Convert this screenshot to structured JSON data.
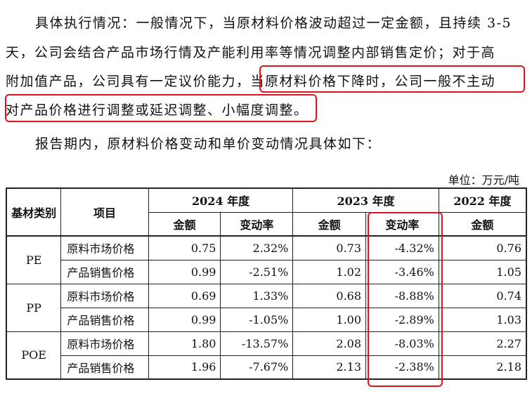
{
  "paragraph": {
    "line1": "具体执行情况：一般情况下，当原材料价格波动超过一定金额，且持续 3-5",
    "line2": "天，公司会结合产品市场行情及产能利用率等情况调整内部销售定价；对于高",
    "line3_a": "附加值产品，公司具有一定议价能力，",
    "line3_b": "当原材料价格下降时，公司一般不主动",
    "line4": "对产品价格进行调整或延迟调整、小幅度调整。",
    "line5": "报告期内，原材料价格变动和单价变动情况具体如下："
  },
  "unit_label": "单位：万元/吨",
  "table": {
    "headers": {
      "category": "基材类别",
      "item": "项目",
      "y2024": "2024 年度",
      "y2023": "2023 年度",
      "y2022": "2022 年度",
      "amount": "金额",
      "change": "变动率"
    },
    "groups": [
      {
        "name": "PE",
        "rows": [
          {
            "item": "原料市场价格",
            "a2024": "0.75",
            "c2024": "2.32%",
            "a2023": "0.73",
            "c2023": "-4.32%",
            "a2022": "0.76"
          },
          {
            "item": "产品销售价格",
            "a2024": "0.99",
            "c2024": "-2.51%",
            "a2023": "1.02",
            "c2023": "-3.46%",
            "a2022": "1.05"
          }
        ]
      },
      {
        "name": "PP",
        "rows": [
          {
            "item": "原料市场价格",
            "a2024": "0.69",
            "c2024": "1.33%",
            "a2023": "0.68",
            "c2023": "-8.88%",
            "a2022": "0.74"
          },
          {
            "item": "产品销售价格",
            "a2024": "0.99",
            "c2024": "-1.05%",
            "a2023": "1.00",
            "c2023": "-2.89%",
            "a2022": "1.03"
          }
        ]
      },
      {
        "name": "POE",
        "rows": [
          {
            "item": "原料市场价格",
            "a2024": "1.80",
            "c2024": "-13.57%",
            "a2023": "2.08",
            "c2023": "-8.03%",
            "a2022": "2.27"
          },
          {
            "item": "产品销售价格",
            "a2024": "1.96",
            "c2024": "-7.67%",
            "a2023": "2.13",
            "c2023": "-2.38%",
            "a2022": "2.18"
          }
        ]
      }
    ]
  },
  "highlight_color": "#e0121b"
}
